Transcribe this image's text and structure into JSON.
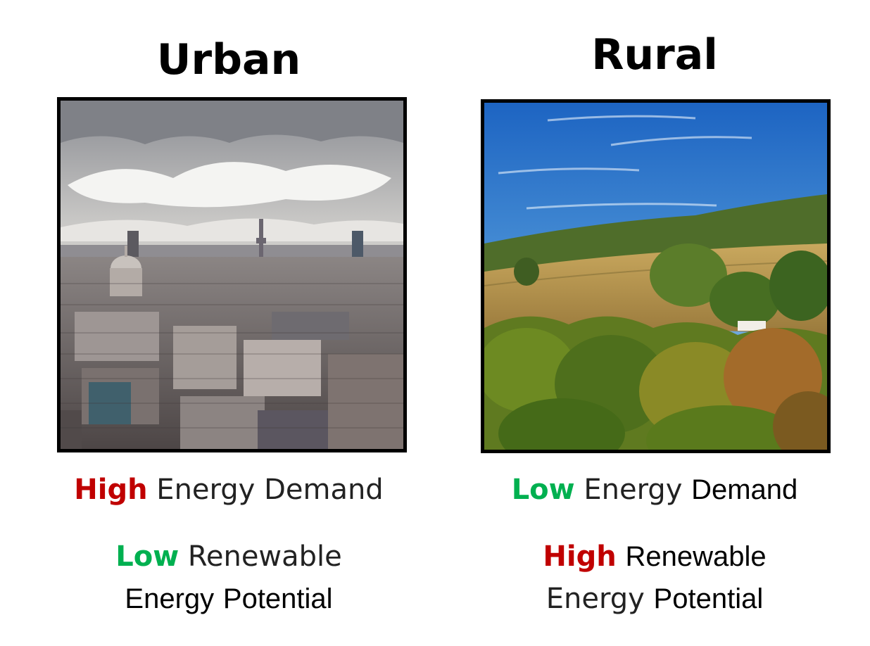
{
  "colors": {
    "high": "#c00000",
    "low": "#00b050",
    "border": "#000000"
  },
  "urban": {
    "title": "Urban",
    "image": "city-skyline-photo",
    "energy_demand": {
      "level": "High",
      "rest_1": "Energy",
      "rest_2": "Demand"
    },
    "renewable": {
      "level": "Low",
      "rest_1": "Renewable",
      "line2_a": "Energy",
      "line2_b": "Potential"
    }
  },
  "rural": {
    "title": "Rural",
    "image": "countryside-landscape-photo",
    "energy_demand": {
      "level": "Low",
      "rest_1": "Energy",
      "rest_2": "Demand"
    },
    "renewable": {
      "level": "High",
      "rest_1": "Renewable",
      "line2_a": "Energy",
      "line2_b": "Potential"
    }
  }
}
